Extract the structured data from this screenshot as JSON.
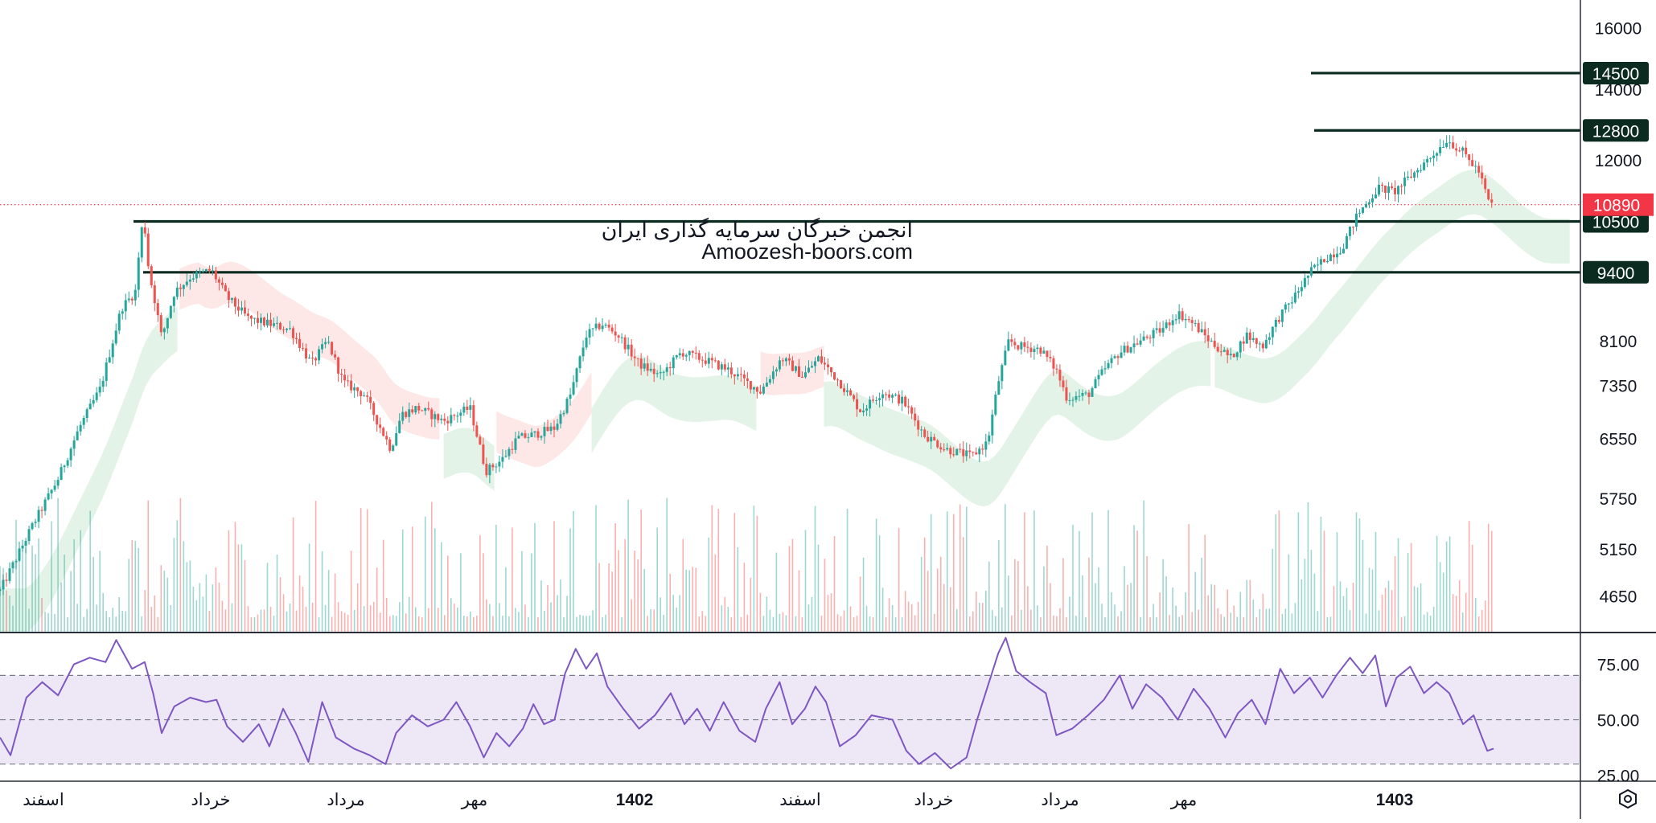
{
  "watermark": {
    "line1": "انجمن خبرگان سرمایه گذاری ایران",
    "line2": "Amoozesh-boors.com"
  },
  "colors": {
    "up": "#26a69a",
    "down": "#ef5350",
    "level_line": "#0b2a20",
    "level_label_bg": "#0b2a20",
    "last_price_bg": "#f23645",
    "cloud_bull": "#cde9d4",
    "cloud_bear": "#fbd3d3",
    "rsi_line": "#7e57c2",
    "rsi_band": "#ede7f6",
    "axis_text": "#131722",
    "divider": "#2a2e39"
  },
  "chart_data": {
    "type": "candlestick",
    "price_axis": {
      "ticks": [
        16000,
        14000,
        12000,
        8100,
        7350,
        6550,
        5750,
        5150,
        4650
      ],
      "scale": "log",
      "range": [
        4300,
        17000
      ]
    },
    "horizontal_levels": [
      {
        "value": 14500,
        "label": "14500"
      },
      {
        "value": 12800,
        "label": "12800"
      },
      {
        "value": 10500,
        "label": "10500"
      },
      {
        "value": 9400,
        "label": "9400"
      }
    ],
    "last_price": {
      "value": 10890,
      "label": "10890"
    },
    "time_axis": {
      "labels": [
        "اسفند",
        "خرداد",
        "مرداد",
        "مهر",
        "1402",
        "اسفند",
        "خرداد",
        "مرداد",
        "مهر",
        "1403"
      ],
      "bold": [
        false,
        false,
        false,
        false,
        true,
        false,
        false,
        false,
        false,
        true
      ]
    },
    "price_path": [
      [
        0,
        4700
      ],
      [
        30,
        5400
      ],
      [
        55,
        6000
      ],
      [
        75,
        6700
      ],
      [
        95,
        7300
      ],
      [
        115,
        8700
      ],
      [
        128,
        9000
      ],
      [
        133,
        10150
      ],
      [
        136,
        10600
      ],
      [
        141,
        9400
      ],
      [
        147,
        8800
      ],
      [
        153,
        8150
      ],
      [
        165,
        9000
      ],
      [
        180,
        9300
      ],
      [
        200,
        9450
      ],
      [
        215,
        8900
      ],
      [
        235,
        8500
      ],
      [
        255,
        8400
      ],
      [
        275,
        8300
      ],
      [
        295,
        7700
      ],
      [
        310,
        8100
      ],
      [
        325,
        7400
      ],
      [
        345,
        7200
      ],
      [
        370,
        6400
      ],
      [
        380,
        6900
      ],
      [
        395,
        7000
      ],
      [
        420,
        6800
      ],
      [
        445,
        7000
      ],
      [
        460,
        6100
      ],
      [
        475,
        6250
      ],
      [
        490,
        6550
      ],
      [
        505,
        6600
      ],
      [
        525,
        6700
      ],
      [
        540,
        7200
      ],
      [
        555,
        8200
      ],
      [
        570,
        8400
      ],
      [
        585,
        8200
      ],
      [
        605,
        7700
      ],
      [
        625,
        7500
      ],
      [
        645,
        7900
      ],
      [
        670,
        7750
      ],
      [
        690,
        7600
      ],
      [
        720,
        7250
      ],
      [
        740,
        7800
      ],
      [
        760,
        7500
      ],
      [
        775,
        7800
      ],
      [
        795,
        7400
      ],
      [
        815,
        6950
      ],
      [
        835,
        7250
      ],
      [
        855,
        7100
      ],
      [
        875,
        6600
      ],
      [
        895,
        6400
      ],
      [
        920,
        6300
      ],
      [
        935,
        6500
      ],
      [
        945,
        7400
      ],
      [
        955,
        8100
      ],
      [
        965,
        8000
      ],
      [
        985,
        7950
      ],
      [
        1000,
        7600
      ],
      [
        1010,
        7150
      ],
      [
        1030,
        7200
      ],
      [
        1045,
        7600
      ],
      [
        1060,
        7900
      ],
      [
        1080,
        8100
      ],
      [
        1100,
        8300
      ],
      [
        1115,
        8600
      ],
      [
        1130,
        8400
      ],
      [
        1145,
        8100
      ],
      [
        1165,
        7800
      ],
      [
        1180,
        8200
      ],
      [
        1195,
        8000
      ],
      [
        1210,
        8500
      ],
      [
        1225,
        8900
      ],
      [
        1240,
        9400
      ],
      [
        1255,
        9700
      ],
      [
        1270,
        9900
      ],
      [
        1285,
        10650
      ],
      [
        1305,
        11300
      ],
      [
        1320,
        11200
      ],
      [
        1340,
        11700
      ],
      [
        1355,
        12100
      ],
      [
        1370,
        12550
      ],
      [
        1385,
        12200
      ],
      [
        1400,
        11700
      ],
      [
        1410,
        10900
      ],
      [
        1414,
        10890
      ]
    ],
    "rsi": {
      "bands": [
        70,
        50,
        30
      ],
      "ticks": [
        "75.00",
        "50.00",
        "25.00"
      ],
      "range": [
        23,
        89
      ],
      "path": [
        [
          0,
          42
        ],
        [
          10,
          34
        ],
        [
          25,
          60
        ],
        [
          40,
          67
        ],
        [
          55,
          61
        ],
        [
          70,
          75
        ],
        [
          85,
          78
        ],
        [
          100,
          76
        ],
        [
          110,
          86
        ],
        [
          125,
          73
        ],
        [
          137,
          76
        ],
        [
          145,
          62
        ],
        [
          153,
          44
        ],
        [
          165,
          56
        ],
        [
          180,
          60
        ],
        [
          195,
          58
        ],
        [
          205,
          59
        ],
        [
          215,
          47
        ],
        [
          230,
          40
        ],
        [
          245,
          48
        ],
        [
          255,
          38
        ],
        [
          268,
          55
        ],
        [
          280,
          44
        ],
        [
          292,
          31
        ],
        [
          305,
          58
        ],
        [
          318,
          42
        ],
        [
          335,
          37
        ],
        [
          350,
          34
        ],
        [
          365,
          30
        ],
        [
          375,
          44
        ],
        [
          390,
          52
        ],
        [
          405,
          47
        ],
        [
          420,
          50
        ],
        [
          432,
          58
        ],
        [
          445,
          47
        ],
        [
          458,
          33
        ],
        [
          470,
          44
        ],
        [
          482,
          38
        ],
        [
          495,
          46
        ],
        [
          505,
          57
        ],
        [
          515,
          48
        ],
        [
          525,
          50
        ],
        [
          535,
          71
        ],
        [
          545,
          82
        ],
        [
          555,
          73
        ],
        [
          565,
          80
        ],
        [
          575,
          65
        ],
        [
          590,
          55
        ],
        [
          605,
          46
        ],
        [
          620,
          52
        ],
        [
          635,
          62
        ],
        [
          648,
          48
        ],
        [
          660,
          55
        ],
        [
          672,
          45
        ],
        [
          685,
          58
        ],
        [
          700,
          45
        ],
        [
          715,
          40
        ],
        [
          725,
          55
        ],
        [
          738,
          67
        ],
        [
          750,
          48
        ],
        [
          762,
          55
        ],
        [
          772,
          65
        ],
        [
          782,
          58
        ],
        [
          795,
          38
        ],
        [
          810,
          43
        ],
        [
          825,
          52
        ],
        [
          845,
          50
        ],
        [
          858,
          36
        ],
        [
          870,
          30
        ],
        [
          885,
          35
        ],
        [
          900,
          28
        ],
        [
          915,
          33
        ],
        [
          925,
          50
        ],
        [
          935,
          65
        ],
        [
          945,
          80
        ],
        [
          952,
          87
        ],
        [
          962,
          72
        ],
        [
          975,
          67
        ],
        [
          990,
          62
        ],
        [
          1000,
          43
        ],
        [
          1015,
          46
        ],
        [
          1030,
          52
        ],
        [
          1045,
          59
        ],
        [
          1060,
          70
        ],
        [
          1072,
          55
        ],
        [
          1085,
          66
        ],
        [
          1100,
          60
        ],
        [
          1115,
          50
        ],
        [
          1130,
          64
        ],
        [
          1145,
          55
        ],
        [
          1160,
          42
        ],
        [
          1172,
          53
        ],
        [
          1185,
          59
        ],
        [
          1198,
          48
        ],
        [
          1212,
          73
        ],
        [
          1225,
          62
        ],
        [
          1240,
          69
        ],
        [
          1252,
          60
        ],
        [
          1265,
          70
        ],
        [
          1278,
          78
        ],
        [
          1290,
          71
        ],
        [
          1302,
          79
        ],
        [
          1312,
          56
        ],
        [
          1322,
          69
        ],
        [
          1335,
          74
        ],
        [
          1348,
          62
        ],
        [
          1360,
          67
        ],
        [
          1372,
          62
        ],
        [
          1385,
          48
        ],
        [
          1395,
          52
        ],
        [
          1403,
          42
        ],
        [
          1408,
          36
        ],
        [
          1414,
          37
        ]
      ]
    }
  }
}
